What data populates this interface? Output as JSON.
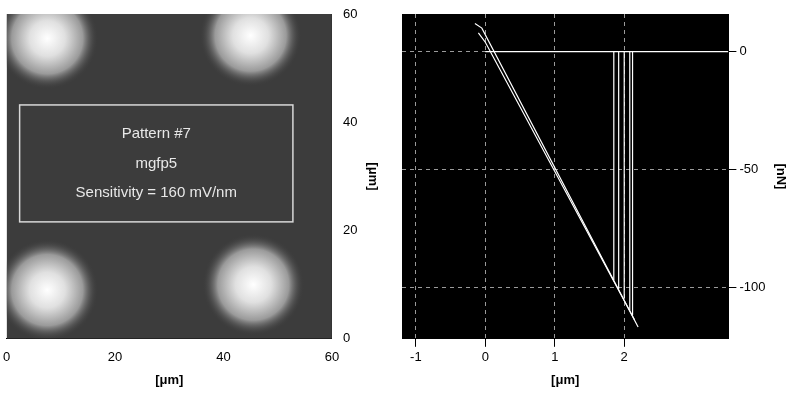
{
  "chart_data": [
    {
      "type": "image",
      "x_label": "[μm]",
      "y_label": "[μm]",
      "xlim": [
        0,
        60
      ],
      "ylim": [
        0,
        60
      ],
      "xticks": [
        0,
        20,
        40,
        60
      ],
      "yticks": [
        0,
        20,
        40,
        60
      ],
      "spots": {
        "x": [
          7.5,
          45,
          7.5,
          45.5
        ],
        "y": [
          55.5,
          56,
          9,
          10
        ],
        "diameter": [
          15,
          15,
          15,
          15
        ]
      },
      "annotation": [
        "Pattern #7",
        "mgfp5",
        "Sensitivity = 160 mV/nm"
      ]
    },
    {
      "type": "line",
      "x_label": "[μm]",
      "y_label": "[nN]",
      "xlim": [
        -1.2,
        3.5
      ],
      "ylim": [
        -122,
        16
      ],
      "xticks": [
        -1,
        0,
        1,
        2
      ],
      "yticks": [
        -100,
        -50,
        0
      ],
      "grid": true,
      "color": "#ffffff",
      "series": [
        {
          "x": [
            -0.15,
            -0.05,
            2.2
          ],
          "y": [
            12,
            10,
            -117
          ]
        },
        {
          "x": [
            -0.1,
            0.0,
            2.15
          ],
          "y": [
            8,
            4,
            -114
          ]
        },
        {
          "x": [
            0,
            3.5
          ],
          "y": [
            0,
            0
          ]
        },
        {
          "x": [
            1.85,
            1.85
          ],
          "y": [
            -97,
            0
          ]
        },
        {
          "x": [
            1.92,
            1.92
          ],
          "y": [
            -101,
            0
          ]
        },
        {
          "x": [
            2.0,
            2.0
          ],
          "y": [
            -105,
            0
          ]
        },
        {
          "x": [
            2.08,
            2.08
          ],
          "y": [
            -110,
            0
          ]
        },
        {
          "x": [
            2.12,
            2.12
          ],
          "y": [
            -112,
            0
          ]
        }
      ]
    }
  ]
}
